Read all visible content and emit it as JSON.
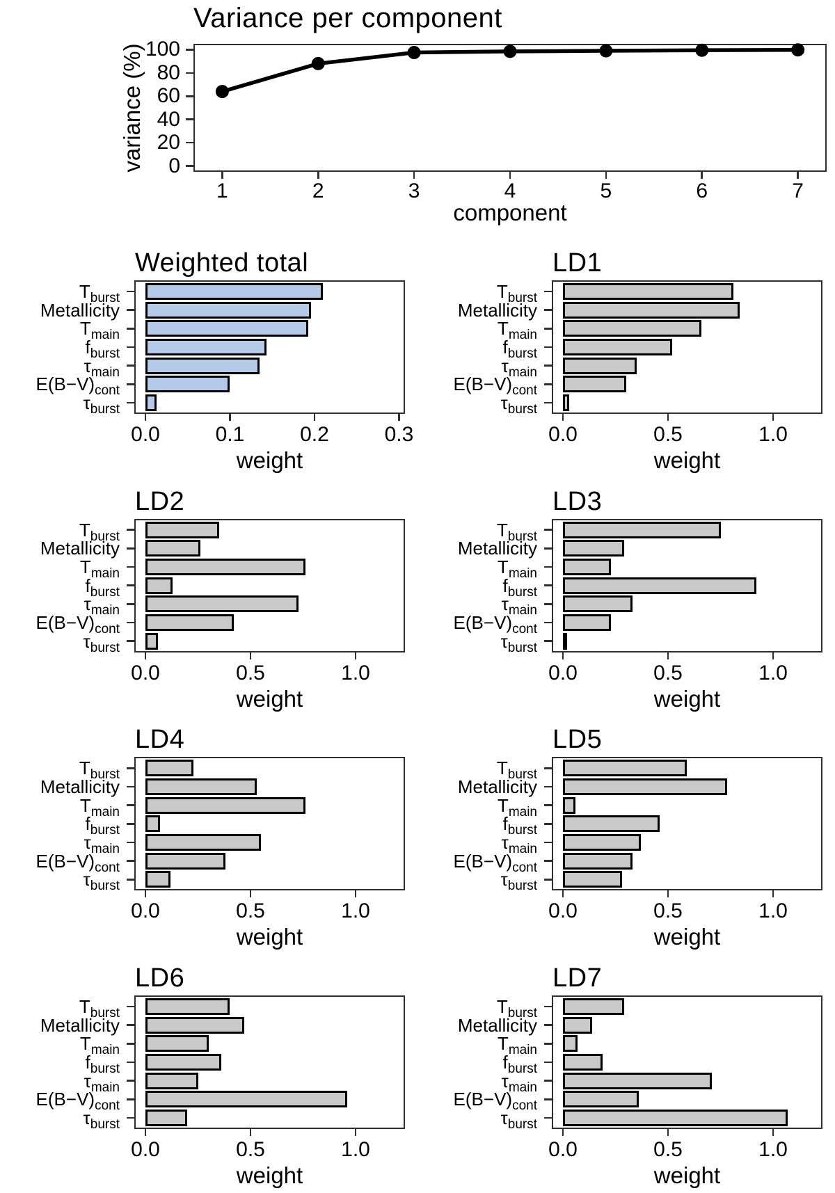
{
  "figure": {
    "description": "Variance per component line chart plus eight horizontal bar charts of variable weights"
  },
  "colors": {
    "weighted_bar_fill": "#b5cae8",
    "ld_bar_fill": "#c9c9c9",
    "bar_stroke": "#000000",
    "line_color": "#000000",
    "panel_border": "#2f2f2f"
  },
  "categories": [
    {
      "main": "T",
      "sub": "burst"
    },
    {
      "main": "Metallicity",
      "sub": ""
    },
    {
      "main": "T",
      "sub": "main"
    },
    {
      "main": "f",
      "sub": "burst"
    },
    {
      "main": "τ",
      "sub": "main"
    },
    {
      "main": "E(B−V)",
      "sub": "cont"
    },
    {
      "main": "τ",
      "sub": "burst"
    }
  ],
  "chart_data": [
    {
      "type": "line",
      "title": "Variance per component",
      "xlabel": "component",
      "ylabel": "variance (%)",
      "x": [
        1,
        2,
        3,
        4,
        5,
        6,
        7
      ],
      "values": [
        64,
        88,
        97.5,
        98.5,
        99,
        99.5,
        99.8
      ],
      "xticks": [
        1,
        2,
        3,
        4,
        5,
        6,
        7
      ],
      "yticks": [
        0,
        20,
        40,
        60,
        80,
        100
      ],
      "xlim": [
        0.7,
        7.3
      ],
      "ylim": [
        -5,
        105
      ],
      "grid": false,
      "legend": "none"
    },
    {
      "type": "bar",
      "orientation": "horizontal",
      "title": "Weighted total",
      "xlabel": "weight",
      "values": [
        0.21,
        0.196,
        0.193,
        0.143,
        0.135,
        0.1,
        0.013
      ],
      "xticks": [
        0,
        0.1,
        0.2,
        0.3
      ],
      "xtick_labels": [
        "0.0",
        "0.1",
        "0.2",
        "0.3"
      ],
      "xlim": [
        0,
        0.307
      ],
      "fill": "#b5cae8"
    },
    {
      "type": "bar",
      "orientation": "horizontal",
      "title": "LD1",
      "xlabel": "weight",
      "values": [
        0.81,
        0.84,
        0.66,
        0.52,
        0.35,
        0.3,
        0.03
      ],
      "xticks": [
        0,
        0.5,
        1.0
      ],
      "xtick_labels": [
        "0.0",
        "0.5",
        "1.0"
      ],
      "xlim": [
        0,
        1.235
      ],
      "fill": "#c9c9c9"
    },
    {
      "type": "bar",
      "orientation": "horizontal",
      "title": "LD2",
      "xlabel": "weight",
      "values": [
        0.35,
        0.26,
        0.76,
        0.13,
        0.73,
        0.42,
        0.06
      ],
      "xticks": [
        0,
        0.5,
        1.0
      ],
      "xtick_labels": [
        "0.0",
        "0.5",
        "1.0"
      ],
      "xlim": [
        0,
        1.235
      ],
      "fill": "#c9c9c9"
    },
    {
      "type": "bar",
      "orientation": "horizontal",
      "title": "LD3",
      "xlabel": "weight",
      "values": [
        0.75,
        0.29,
        0.23,
        0.92,
        0.33,
        0.23,
        0.02
      ],
      "xticks": [
        0,
        0.5,
        1.0
      ],
      "xtick_labels": [
        "0.0",
        "0.5",
        "1.0"
      ],
      "xlim": [
        0,
        1.235
      ],
      "fill": "#c9c9c9"
    },
    {
      "type": "bar",
      "orientation": "horizontal",
      "title": "LD4",
      "xlabel": "weight",
      "values": [
        0.23,
        0.53,
        0.76,
        0.07,
        0.55,
        0.38,
        0.12
      ],
      "xticks": [
        0,
        0.5,
        1.0
      ],
      "xtick_labels": [
        "0.0",
        "0.5",
        "1.0"
      ],
      "xlim": [
        0,
        1.235
      ],
      "fill": "#c9c9c9"
    },
    {
      "type": "bar",
      "orientation": "horizontal",
      "title": "LD5",
      "xlabel": "weight",
      "values": [
        0.59,
        0.78,
        0.06,
        0.46,
        0.37,
        0.33,
        0.28
      ],
      "xticks": [
        0,
        0.5,
        1.0
      ],
      "xtick_labels": [
        "0.0",
        "0.5",
        "1.0"
      ],
      "xlim": [
        0,
        1.235
      ],
      "fill": "#c9c9c9"
    },
    {
      "type": "bar",
      "orientation": "horizontal",
      "title": "LD6",
      "xlabel": "weight",
      "values": [
        0.4,
        0.47,
        0.3,
        0.36,
        0.25,
        0.96,
        0.2
      ],
      "xticks": [
        0,
        0.5,
        1.0
      ],
      "xtick_labels": [
        "0.0",
        "0.5",
        "1.0"
      ],
      "xlim": [
        0,
        1.235
      ],
      "fill": "#c9c9c9"
    },
    {
      "type": "bar",
      "orientation": "horizontal",
      "title": "LD7",
      "xlabel": "weight",
      "values": [
        0.29,
        0.14,
        0.07,
        0.19,
        0.71,
        0.36,
        1.07
      ],
      "xticks": [
        0,
        0.5,
        1.0
      ],
      "xtick_labels": [
        "0.0",
        "0.5",
        "1.0"
      ],
      "xlim": [
        0,
        1.235
      ],
      "fill": "#c9c9c9"
    }
  ]
}
